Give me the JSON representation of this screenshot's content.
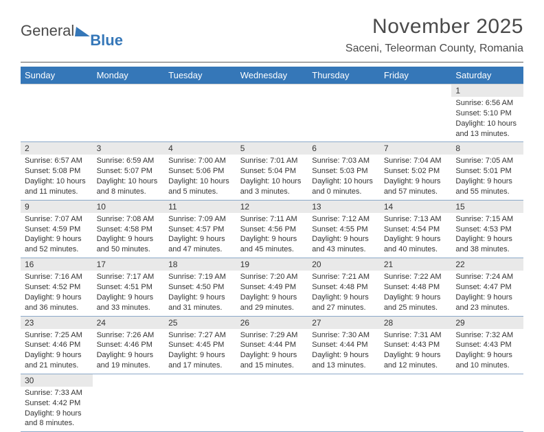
{
  "logo": {
    "word1": "General",
    "word2": "Blue"
  },
  "title": "November 2025",
  "subtitle": "Saceni, Teleorman County, Romania",
  "colors": {
    "header_bg": "#3577b8",
    "header_text": "#ffffff",
    "daynum_bg": "#e9e9e9",
    "row_border": "#8aa8c8"
  },
  "day_headers": [
    "Sunday",
    "Monday",
    "Tuesday",
    "Wednesday",
    "Thursday",
    "Friday",
    "Saturday"
  ],
  "weeks": [
    {
      "daynums": [
        "",
        "",
        "",
        "",
        "",
        "",
        "1"
      ],
      "cells": [
        null,
        null,
        null,
        null,
        null,
        null,
        {
          "sunrise": "Sunrise: 6:56 AM",
          "sunset": "Sunset: 5:10 PM",
          "day1": "Daylight: 10 hours",
          "day2": "and 13 minutes."
        }
      ]
    },
    {
      "daynums": [
        "2",
        "3",
        "4",
        "5",
        "6",
        "7",
        "8"
      ],
      "cells": [
        {
          "sunrise": "Sunrise: 6:57 AM",
          "sunset": "Sunset: 5:08 PM",
          "day1": "Daylight: 10 hours",
          "day2": "and 11 minutes."
        },
        {
          "sunrise": "Sunrise: 6:59 AM",
          "sunset": "Sunset: 5:07 PM",
          "day1": "Daylight: 10 hours",
          "day2": "and 8 minutes."
        },
        {
          "sunrise": "Sunrise: 7:00 AM",
          "sunset": "Sunset: 5:06 PM",
          "day1": "Daylight: 10 hours",
          "day2": "and 5 minutes."
        },
        {
          "sunrise": "Sunrise: 7:01 AM",
          "sunset": "Sunset: 5:04 PM",
          "day1": "Daylight: 10 hours",
          "day2": "and 3 minutes."
        },
        {
          "sunrise": "Sunrise: 7:03 AM",
          "sunset": "Sunset: 5:03 PM",
          "day1": "Daylight: 10 hours",
          "day2": "and 0 minutes."
        },
        {
          "sunrise": "Sunrise: 7:04 AM",
          "sunset": "Sunset: 5:02 PM",
          "day1": "Daylight: 9 hours",
          "day2": "and 57 minutes."
        },
        {
          "sunrise": "Sunrise: 7:05 AM",
          "sunset": "Sunset: 5:01 PM",
          "day1": "Daylight: 9 hours",
          "day2": "and 55 minutes."
        }
      ]
    },
    {
      "daynums": [
        "9",
        "10",
        "11",
        "12",
        "13",
        "14",
        "15"
      ],
      "cells": [
        {
          "sunrise": "Sunrise: 7:07 AM",
          "sunset": "Sunset: 4:59 PM",
          "day1": "Daylight: 9 hours",
          "day2": "and 52 minutes."
        },
        {
          "sunrise": "Sunrise: 7:08 AM",
          "sunset": "Sunset: 4:58 PM",
          "day1": "Daylight: 9 hours",
          "day2": "and 50 minutes."
        },
        {
          "sunrise": "Sunrise: 7:09 AM",
          "sunset": "Sunset: 4:57 PM",
          "day1": "Daylight: 9 hours",
          "day2": "and 47 minutes."
        },
        {
          "sunrise": "Sunrise: 7:11 AM",
          "sunset": "Sunset: 4:56 PM",
          "day1": "Daylight: 9 hours",
          "day2": "and 45 minutes."
        },
        {
          "sunrise": "Sunrise: 7:12 AM",
          "sunset": "Sunset: 4:55 PM",
          "day1": "Daylight: 9 hours",
          "day2": "and 43 minutes."
        },
        {
          "sunrise": "Sunrise: 7:13 AM",
          "sunset": "Sunset: 4:54 PM",
          "day1": "Daylight: 9 hours",
          "day2": "and 40 minutes."
        },
        {
          "sunrise": "Sunrise: 7:15 AM",
          "sunset": "Sunset: 4:53 PM",
          "day1": "Daylight: 9 hours",
          "day2": "and 38 minutes."
        }
      ]
    },
    {
      "daynums": [
        "16",
        "17",
        "18",
        "19",
        "20",
        "21",
        "22"
      ],
      "cells": [
        {
          "sunrise": "Sunrise: 7:16 AM",
          "sunset": "Sunset: 4:52 PM",
          "day1": "Daylight: 9 hours",
          "day2": "and 36 minutes."
        },
        {
          "sunrise": "Sunrise: 7:17 AM",
          "sunset": "Sunset: 4:51 PM",
          "day1": "Daylight: 9 hours",
          "day2": "and 33 minutes."
        },
        {
          "sunrise": "Sunrise: 7:19 AM",
          "sunset": "Sunset: 4:50 PM",
          "day1": "Daylight: 9 hours",
          "day2": "and 31 minutes."
        },
        {
          "sunrise": "Sunrise: 7:20 AM",
          "sunset": "Sunset: 4:49 PM",
          "day1": "Daylight: 9 hours",
          "day2": "and 29 minutes."
        },
        {
          "sunrise": "Sunrise: 7:21 AM",
          "sunset": "Sunset: 4:48 PM",
          "day1": "Daylight: 9 hours",
          "day2": "and 27 minutes."
        },
        {
          "sunrise": "Sunrise: 7:22 AM",
          "sunset": "Sunset: 4:48 PM",
          "day1": "Daylight: 9 hours",
          "day2": "and 25 minutes."
        },
        {
          "sunrise": "Sunrise: 7:24 AM",
          "sunset": "Sunset: 4:47 PM",
          "day1": "Daylight: 9 hours",
          "day2": "and 23 minutes."
        }
      ]
    },
    {
      "daynums": [
        "23",
        "24",
        "25",
        "26",
        "27",
        "28",
        "29"
      ],
      "cells": [
        {
          "sunrise": "Sunrise: 7:25 AM",
          "sunset": "Sunset: 4:46 PM",
          "day1": "Daylight: 9 hours",
          "day2": "and 21 minutes."
        },
        {
          "sunrise": "Sunrise: 7:26 AM",
          "sunset": "Sunset: 4:46 PM",
          "day1": "Daylight: 9 hours",
          "day2": "and 19 minutes."
        },
        {
          "sunrise": "Sunrise: 7:27 AM",
          "sunset": "Sunset: 4:45 PM",
          "day1": "Daylight: 9 hours",
          "day2": "and 17 minutes."
        },
        {
          "sunrise": "Sunrise: 7:29 AM",
          "sunset": "Sunset: 4:44 PM",
          "day1": "Daylight: 9 hours",
          "day2": "and 15 minutes."
        },
        {
          "sunrise": "Sunrise: 7:30 AM",
          "sunset": "Sunset: 4:44 PM",
          "day1": "Daylight: 9 hours",
          "day2": "and 13 minutes."
        },
        {
          "sunrise": "Sunrise: 7:31 AM",
          "sunset": "Sunset: 4:43 PM",
          "day1": "Daylight: 9 hours",
          "day2": "and 12 minutes."
        },
        {
          "sunrise": "Sunrise: 7:32 AM",
          "sunset": "Sunset: 4:43 PM",
          "day1": "Daylight: 9 hours",
          "day2": "and 10 minutes."
        }
      ]
    },
    {
      "daynums": [
        "30",
        "",
        "",
        "",
        "",
        "",
        ""
      ],
      "cells": [
        {
          "sunrise": "Sunrise: 7:33 AM",
          "sunset": "Sunset: 4:42 PM",
          "day1": "Daylight: 9 hours",
          "day2": "and 8 minutes."
        },
        null,
        null,
        null,
        null,
        null,
        null
      ]
    }
  ]
}
